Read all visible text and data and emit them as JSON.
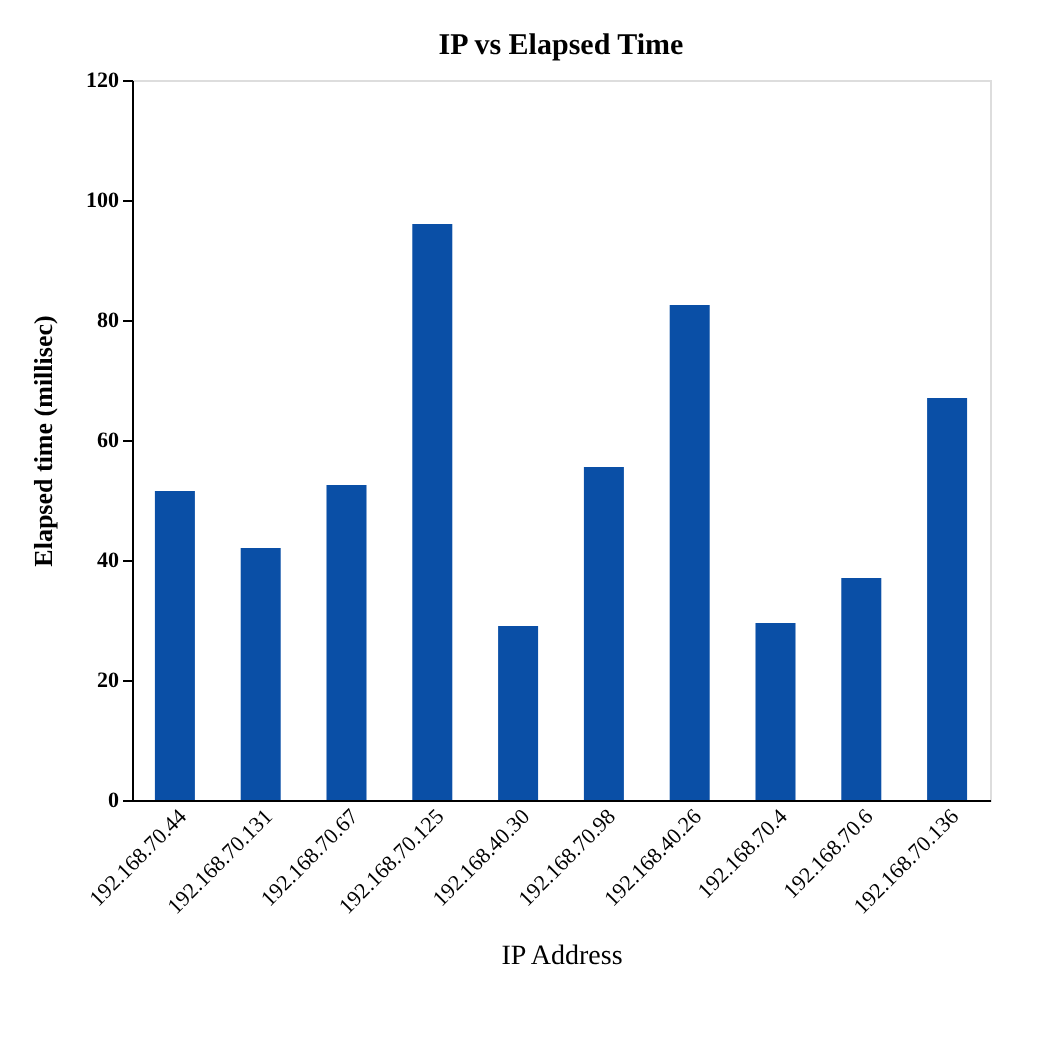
{
  "chart_data": {
    "type": "bar",
    "title": "IP  vs Elapsed Time",
    "xlabel": "IP Address",
    "ylabel": "Elapsed time (millisec)",
    "categories": [
      "192.168.70.44",
      "192.168.70.131",
      "192.168.70.67",
      "192.168.70.125",
      "192.168.40.30",
      "192.168.70.98",
      "192.168.40.26",
      "192.168.70.4",
      "192.168.70.6",
      "192.168.70.136"
    ],
    "values": [
      51.5,
      42,
      52.5,
      96,
      29,
      55.5,
      82.5,
      29.5,
      37,
      67
    ],
    "color": "#0a4fa6",
    "ylim": [
      0,
      120
    ],
    "yticks": [
      0,
      20,
      40,
      60,
      80,
      100,
      120
    ],
    "grid": false
  }
}
